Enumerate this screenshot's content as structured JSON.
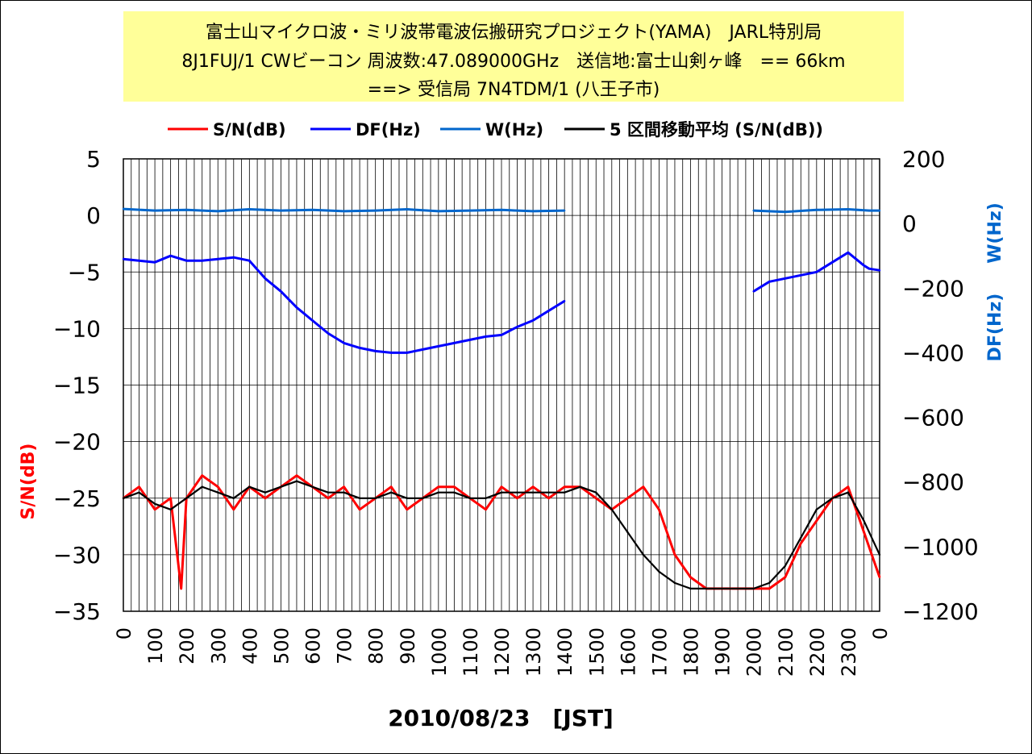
{
  "header": {
    "title_line1": "富士山マイクロ波・ミリ波帯電波伝搬研究プロジェクト(YAMA)　JARL特別局",
    "title_line2": "8J1FUJ/1 CWビーコン 周波数:47.089000GHz　送信地:富士山剣ヶ峰　== 66km",
    "title_line3": "==> 受信局 7N4TDM/1 (八王子市)"
  },
  "chart_data": {
    "type": "line",
    "xlabel": "2010/08/23　[JST]",
    "ylabel_left": "S/N(dB)",
    "ylabel_right_1": "W(Hz)",
    "ylabel_right_2": "DF(Hz)",
    "left_axis": {
      "min": -35,
      "max": 5,
      "ticks": [
        5,
        0,
        -5,
        -10,
        -15,
        -20,
        -25,
        -30,
        -35
      ]
    },
    "right_axis": {
      "min": -1200,
      "max": 200,
      "ticks": [
        200,
        0,
        -200,
        -400,
        -600,
        -800,
        -1000,
        -1200
      ]
    },
    "x_axis": {
      "min": 0,
      "max": 1440,
      "tick_labels": [
        "0",
        "100",
        "200",
        "300",
        "400",
        "500",
        "600",
        "700",
        "800",
        "900",
        "1000",
        "1100",
        "1200",
        "1300",
        "1400",
        "1500",
        "1600",
        "1700",
        "1800",
        "1900",
        "2000",
        "2100",
        "2200",
        "2300",
        "0"
      ]
    },
    "grid": true,
    "legend_position": "top",
    "legend": [
      {
        "name": "S/N(dB)",
        "color": "#ff0000"
      },
      {
        "name": "DF(Hz)",
        "color": "#0000ff"
      },
      {
        "name": "W(Hz)",
        "color": "#0066cc"
      },
      {
        "name": "5 区間移動平均 (S/N(dB))",
        "color": "#000000"
      }
    ],
    "series": [
      {
        "name": "S/N(dB)",
        "axis": "left",
        "color": "#ff0000",
        "x": [
          0,
          30,
          60,
          90,
          110,
          120,
          150,
          180,
          210,
          240,
          270,
          300,
          330,
          360,
          390,
          420,
          450,
          480,
          510,
          540,
          570,
          600,
          630,
          660,
          690,
          720,
          750,
          780,
          810,
          840,
          870,
          900,
          930,
          960,
          990,
          1020,
          1050,
          1080,
          1110,
          1140,
          1170,
          1200,
          1230,
          1260,
          1290,
          1290,
          1320,
          1350,
          1380,
          1410,
          1440
        ],
        "y": [
          -25,
          -24,
          -26,
          -25,
          -33,
          -25,
          -23,
          -24,
          -26,
          -24,
          -25,
          -24,
          -23,
          -24,
          -25,
          -24,
          -26,
          -25,
          -24,
          -26,
          -25,
          -24,
          -24,
          -25,
          -26,
          -24,
          -25,
          -24,
          -25,
          -24,
          -24,
          -25,
          -26,
          -25,
          -24,
          -26,
          -30,
          -32,
          -33,
          -33,
          -33,
          -33,
          -33,
          -32,
          -29,
          -29,
          -27,
          -25,
          -24,
          -28,
          -32
        ]
      },
      {
        "name": "5 区間移動平均 (S/N(dB))",
        "axis": "left",
        "color": "#000000",
        "x": [
          0,
          30,
          60,
          90,
          120,
          150,
          180,
          210,
          240,
          270,
          300,
          330,
          360,
          390,
          420,
          450,
          480,
          510,
          540,
          570,
          600,
          630,
          660,
          690,
          720,
          750,
          780,
          810,
          840,
          870,
          900,
          930,
          960,
          990,
          1020,
          1050,
          1080,
          1110,
          1140,
          1170,
          1200,
          1230,
          1260,
          1290,
          1320,
          1350,
          1380,
          1410,
          1440
        ],
        "y": [
          -25,
          -24.5,
          -25.5,
          -26,
          -25,
          -24,
          -24.5,
          -25,
          -24,
          -24.5,
          -24,
          -23.5,
          -24,
          -24.5,
          -24.5,
          -25,
          -25,
          -24.5,
          -25,
          -25,
          -24.5,
          -24.5,
          -25,
          -25,
          -24.5,
          -24.5,
          -24.5,
          -24.5,
          -24.5,
          -24,
          -24.5,
          -26,
          -28,
          -30,
          -31.5,
          -32.5,
          -33,
          -33,
          -33,
          -33,
          -33,
          -32.5,
          -31,
          -28.5,
          -26,
          -25,
          -24.5,
          -27,
          -30
        ]
      },
      {
        "name": "W(Hz)",
        "axis": "right",
        "color": "#0066cc",
        "x": [
          0,
          60,
          120,
          180,
          240,
          300,
          360,
          420,
          480,
          540,
          600,
          660,
          720,
          780,
          840,
          870,
          900,
          960,
          1020,
          1080,
          1140,
          1200,
          1260,
          1320,
          1380,
          1420,
          1440
        ],
        "y": [
          45,
          40,
          42,
          38,
          44,
          40,
          42,
          38,
          40,
          44,
          38,
          40,
          42,
          38,
          40,
          null,
          null,
          null,
          null,
          null,
          null,
          40,
          36,
          42,
          44,
          40,
          40
        ]
      },
      {
        "name": "DF(Hz)",
        "axis": "right",
        "color": "#0000ff",
        "x": [
          0,
          30,
          60,
          90,
          120,
          150,
          180,
          210,
          240,
          270,
          300,
          330,
          360,
          390,
          420,
          450,
          480,
          510,
          540,
          570,
          600,
          630,
          660,
          690,
          720,
          750,
          780,
          810,
          840,
          870,
          900,
          930,
          960,
          990,
          1020,
          1050,
          1080,
          1110,
          1140,
          1170,
          1200,
          1230,
          1260,
          1290,
          1320,
          1350,
          1380,
          1410,
          1420,
          1440
        ],
        "y": [
          -110,
          -115,
          -120,
          -100,
          -115,
          -115,
          -110,
          -105,
          -115,
          -170,
          -210,
          -260,
          -300,
          -340,
          -370,
          -385,
          -395,
          -400,
          -400,
          -390,
          -380,
          -370,
          -360,
          -350,
          -345,
          -320,
          -300,
          -270,
          -240,
          null,
          null,
          null,
          null,
          null,
          null,
          null,
          null,
          null,
          null,
          null,
          -210,
          -180,
          -170,
          -160,
          -150,
          -120,
          -90,
          -130,
          -140,
          -145
        ]
      }
    ]
  }
}
